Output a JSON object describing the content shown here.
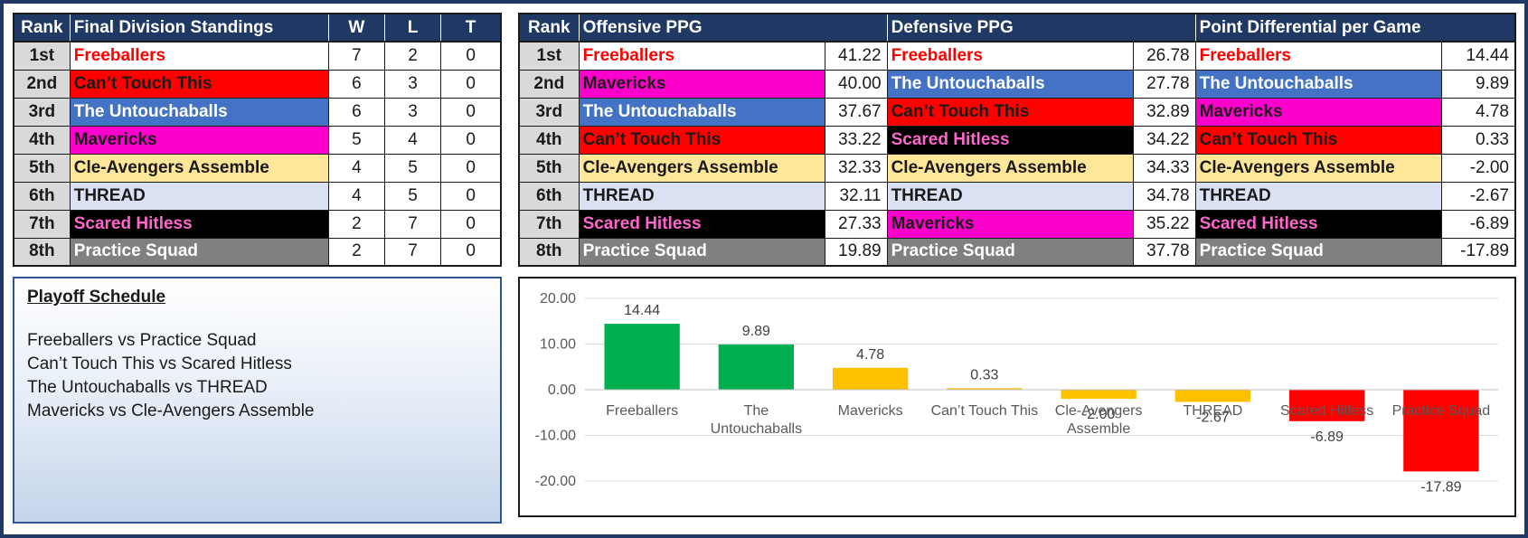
{
  "colors": {
    "header_bg": "#1f3864",
    "header_text": "#ffffff",
    "rank_bg": "#d9d9d9",
    "positive_bar": "#00b050",
    "mid_bar": "#ffc000",
    "negative_bar": "#ff0000"
  },
  "teams": {
    "Freeballers": {
      "bg": "#ffffff",
      "fg": "#ff0000"
    },
    "Can't Touch This": {
      "bg": "#ff0000",
      "fg": "#1a1a1a"
    },
    "The Untouchaballs": {
      "bg": "#4472c4",
      "fg": "#ffffff"
    },
    "Mavericks": {
      "bg": "#ff00cc",
      "fg": "#1a1a1a"
    },
    "Cle-Avengers Assemble": {
      "bg": "#ffe699",
      "fg": "#1a1a1a"
    },
    "THREAD": {
      "bg": "#d9e1f2",
      "fg": "#1a1a1a"
    },
    "Scared Hitless": {
      "bg": "#000000",
      "fg": "#ff66cc"
    },
    "Practice Squad": {
      "bg": "#808080",
      "fg": "#ffffff"
    }
  },
  "standings": {
    "headers": {
      "rank": "Rank",
      "team": "Final Division Standings",
      "w": "W",
      "l": "L",
      "t": "T"
    },
    "rows": [
      {
        "rank": "1st",
        "team": "Freeballers",
        "display": "Freeballers",
        "w": "7",
        "l": "2",
        "t": "0"
      },
      {
        "rank": "2nd",
        "team": "Can't Touch This",
        "display": "Can’t Touch This",
        "w": "6",
        "l": "3",
        "t": "0"
      },
      {
        "rank": "3rd",
        "team": "The Untouchaballs",
        "display": "The Untouchaballs",
        "w": "6",
        "l": "3",
        "t": "0"
      },
      {
        "rank": "4th",
        "team": "Mavericks",
        "display": "Mavericks",
        "w": "5",
        "l": "4",
        "t": "0"
      },
      {
        "rank": "5th",
        "team": "Cle-Avengers Assemble",
        "display": "Cle-Avengers Assemble",
        "w": "4",
        "l": "5",
        "t": "0"
      },
      {
        "rank": "6th",
        "team": "THREAD",
        "display": "THREAD",
        "w": "4",
        "l": "5",
        "t": "0"
      },
      {
        "rank": "7th",
        "team": "Scared Hitless",
        "display": "Scared Hitless",
        "w": "2",
        "l": "7",
        "t": "0"
      },
      {
        "rank": "8th",
        "team": "Practice Squad",
        "display": "Practice Squad",
        "w": "2",
        "l": "7",
        "t": "0"
      }
    ]
  },
  "stats": {
    "headers": {
      "rank": "Rank",
      "off": "Offensive PPG",
      "def": "Defensive PPG",
      "diff": "Point Differential per Game"
    },
    "rows": [
      {
        "rank": "1st",
        "off_team": "Freeballers",
        "off_display": "Freeballers",
        "off_val": "41.22",
        "def_team": "Freeballers",
        "def_display": "Freeballers",
        "def_val": "26.78",
        "diff_team": "Freeballers",
        "diff_display": "Freeballers",
        "diff_val": "14.44"
      },
      {
        "rank": "2nd",
        "off_team": "Mavericks",
        "off_display": "Mavericks",
        "off_val": "40.00",
        "def_team": "The Untouchaballs",
        "def_display": "The Untouchaballs",
        "def_val": "27.78",
        "diff_team": "The Untouchaballs",
        "diff_display": "The Untouchaballs",
        "diff_val": "9.89"
      },
      {
        "rank": "3rd",
        "off_team": "The Untouchaballs",
        "off_display": "The Untouchaballs",
        "off_val": "37.67",
        "def_team": "Can't Touch This",
        "def_display": "Can’t Touch This",
        "def_val": "32.89",
        "diff_team": "Mavericks",
        "diff_display": "Mavericks",
        "diff_val": "4.78"
      },
      {
        "rank": "4th",
        "off_team": "Can't Touch This",
        "off_display": "Can’t Touch This",
        "off_val": "33.22",
        "def_team": "Scared Hitless",
        "def_display": "Scared Hitless",
        "def_val": "34.22",
        "diff_team": "Can't Touch This",
        "diff_display": "Can’t Touch This",
        "diff_val": "0.33"
      },
      {
        "rank": "5th",
        "off_team": "Cle-Avengers Assemble",
        "off_display": "Cle-Avengers Assemble",
        "off_val": "32.33",
        "def_team": "Cle-Avengers Assemble",
        "def_display": "Cle-Avengers Assemble",
        "def_val": "34.33",
        "diff_team": "Cle-Avengers Assemble",
        "diff_display": "Cle-Avengers Assemble",
        "diff_val": "-2.00"
      },
      {
        "rank": "6th",
        "off_team": "THREAD",
        "off_display": "THREAD",
        "off_val": "32.11",
        "def_team": "THREAD",
        "def_display": "THREAD",
        "def_val": "34.78",
        "diff_team": "THREAD",
        "diff_display": "THREAD",
        "diff_val": "-2.67"
      },
      {
        "rank": "7th",
        "off_team": "Scared Hitless",
        "off_display": "Scared Hitless",
        "off_val": "27.33",
        "def_team": "Mavericks",
        "def_display": "Mavericks",
        "def_val": "35.22",
        "diff_team": "Scared Hitless",
        "diff_display": "Scared Hitless",
        "diff_val": "-6.89"
      },
      {
        "rank": "8th",
        "off_team": "Practice Squad",
        "off_display": "Practice Squad",
        "off_val": "19.89",
        "def_team": "Practice Squad",
        "def_display": "Practice Squad",
        "def_val": "37.78",
        "diff_team": "Practice Squad",
        "diff_display": "Practice Squad",
        "diff_val": "-17.89"
      }
    ]
  },
  "playoff": {
    "title": "Playoff Schedule",
    "games": [
      "Freeballers vs Practice Squad",
      "Can’t Touch This vs Scared Hitless",
      "The Untouchaballs vs THREAD",
      "Mavericks vs Cle-Avengers Assemble"
    ]
  },
  "chart_data": {
    "type": "bar",
    "title": "",
    "xlabel": "",
    "ylabel": "",
    "categories": [
      "Freeballers",
      "The Untouchaballs",
      "Mavericks",
      "Can’t Touch This",
      "Cle-Avengers Assemble",
      "THREAD",
      "Scared Hitless",
      "Practice Squad"
    ],
    "category_lines": [
      [
        "Freeballers"
      ],
      [
        "The",
        "Untouchaballs"
      ],
      [
        "Mavericks"
      ],
      [
        "Can’t Touch This"
      ],
      [
        "Cle-Avengers",
        "Assemble"
      ],
      [
        "THREAD"
      ],
      [
        "Scared Hitless"
      ],
      [
        "Practice Squad"
      ]
    ],
    "values": [
      14.44,
      9.89,
      4.78,
      0.33,
      -2.0,
      -2.67,
      -6.89,
      -17.89
    ],
    "value_labels": [
      "14.44",
      "9.89",
      "4.78",
      "0.33",
      "-2.00",
      "-2.67",
      "-6.89",
      "-17.89"
    ],
    "bar_colors": [
      "#00b050",
      "#00b050",
      "#ffc000",
      "#ffc000",
      "#ffc000",
      "#ffc000",
      "#ff0000",
      "#ff0000"
    ],
    "yticks": [
      "20.00",
      "10.00",
      "0.00",
      "-10.00",
      "-20.00"
    ],
    "ytick_values": [
      20,
      10,
      0,
      -10,
      -20
    ],
    "ylim": [
      -20,
      20
    ],
    "grid": true,
    "legend": "none"
  }
}
